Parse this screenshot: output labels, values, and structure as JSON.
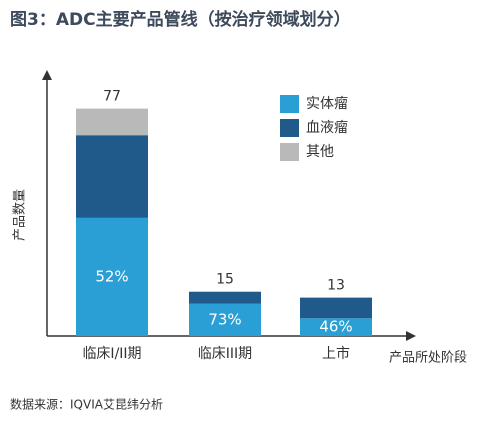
{
  "chart_data": {
    "type": "stacked-bar",
    "title": "图3：ADC主要产品管线（按治疗领域划分）",
    "y_label": "产品数量",
    "x_label": "产品所处阶段",
    "source": "数据来源：IQVIA艾昆纬分析",
    "categories": [
      "临床I/II期",
      "临床III期",
      "上市"
    ],
    "series": [
      {
        "name": "实体瘤",
        "color": "#2a9fd6",
        "values": [
          40,
          11,
          6
        ]
      },
      {
        "name": "血液瘤",
        "color": "#1f5a8a",
        "values": [
          28,
          4,
          7
        ]
      },
      {
        "name": "其他",
        "color": "#b9b9b9",
        "values": [
          9,
          0,
          0
        ]
      }
    ],
    "totals": [
      77,
      15,
      13
    ],
    "solid_tumor_share": [
      {
        "value": 52,
        "label": "52%"
      },
      {
        "value": 73,
        "label": "73%"
      },
      {
        "value": 46,
        "label": "46%"
      }
    ],
    "ylim": [
      0,
      85
    ]
  }
}
